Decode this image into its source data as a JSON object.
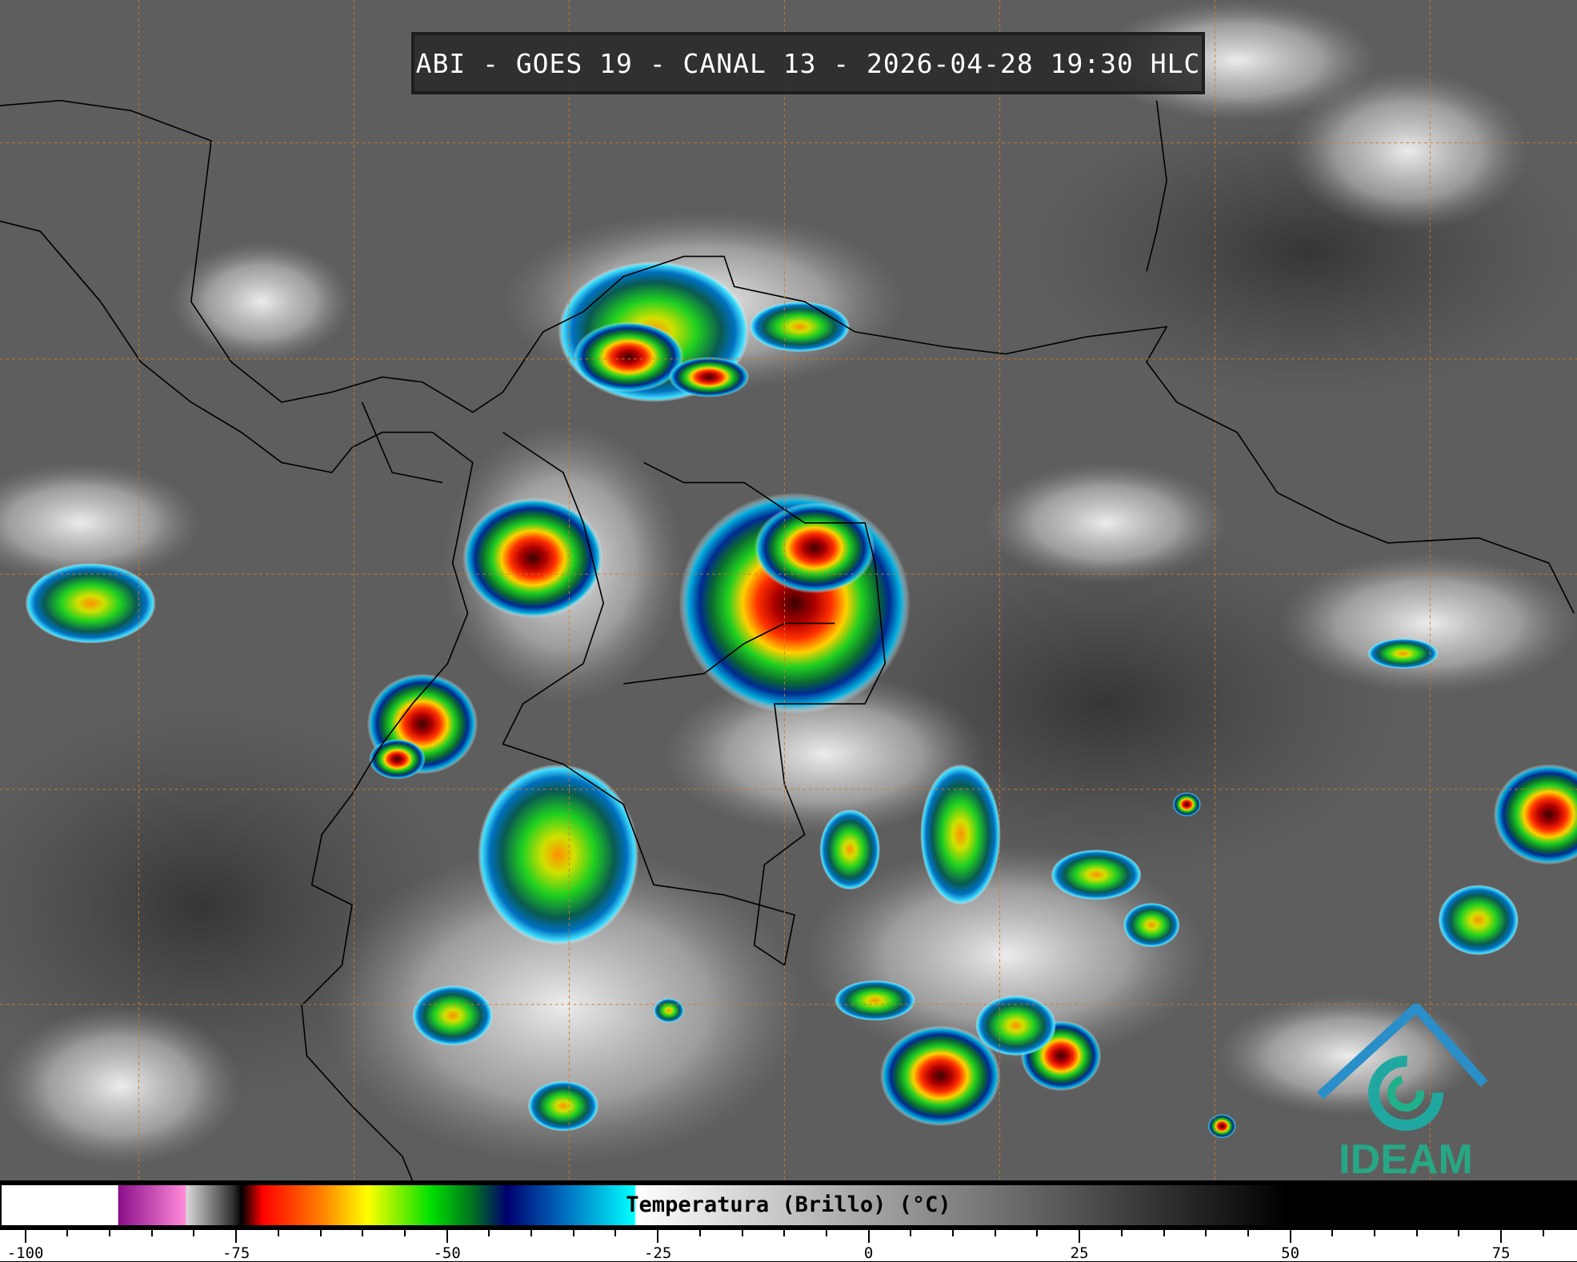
{
  "title": "ABI - GOES 19 - CANAL 13 - 2026-04-28 19:30 HLC",
  "colorbar": {
    "label": "Temperatura (Brillo) (°C)",
    "range": [
      -103,
      84
    ],
    "tick_labels": [
      "-100",
      "-75",
      "-50",
      "-25",
      "0",
      "25",
      "50",
      "75"
    ],
    "tick_values": [
      -100,
      -75,
      -50,
      -25,
      0,
      25,
      50,
      75
    ],
    "minor_tick_step": 5,
    "stops": [
      {
        "value": -103,
        "color": "#ffffff"
      },
      {
        "value": -89.2,
        "color": "#ffffff"
      },
      {
        "value": -89.1,
        "color": "#8a0f8a"
      },
      {
        "value": -81.2,
        "color": "#ff8ad8"
      },
      {
        "value": -81.0,
        "color": "#d8d8d8"
      },
      {
        "value": -75.5,
        "color": "#303030"
      },
      {
        "value": -74.5,
        "color": "#000000"
      },
      {
        "value": -72,
        "color": "#ff0000"
      },
      {
        "value": -65,
        "color": "#ff8000"
      },
      {
        "value": -59.5,
        "color": "#ffff00"
      },
      {
        "value": -52,
        "color": "#00e000"
      },
      {
        "value": -47,
        "color": "#007020"
      },
      {
        "value": -43,
        "color": "#000070"
      },
      {
        "value": -36,
        "color": "#0070c0"
      },
      {
        "value": -27.8,
        "color": "#00ffff"
      },
      {
        "value": -27.6,
        "color": "#ffffff"
      },
      {
        "value": 49.7,
        "color": "#000000"
      },
      {
        "value": 84,
        "color": "#000000"
      }
    ]
  },
  "map": {
    "background_color": "#5e5e5e",
    "grid_color": "#d07a2a",
    "coastline_color": "#000000"
  },
  "logo": {
    "text": "IDEAM",
    "colors": [
      "#2a8fc8",
      "#20b08a"
    ]
  }
}
